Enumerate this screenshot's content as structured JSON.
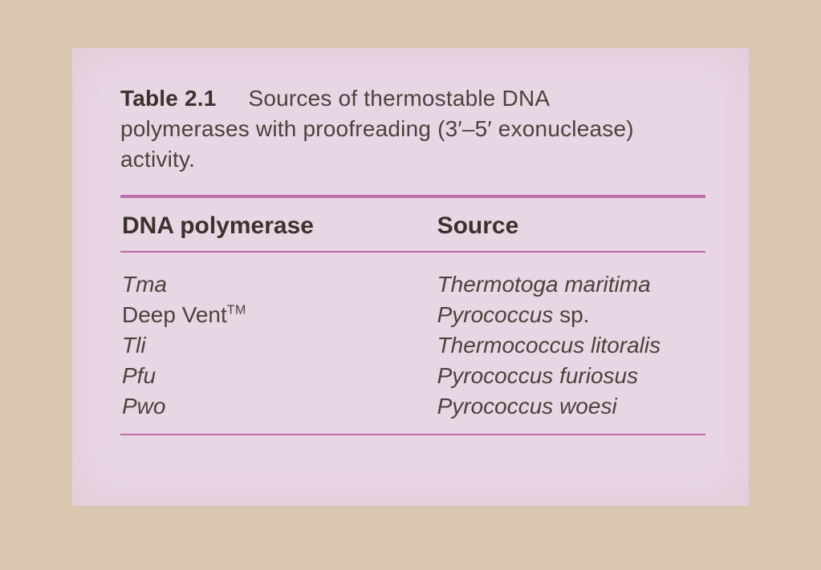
{
  "caption": {
    "label": "Table 2.1",
    "text_line1": "Sources of thermostable DNA",
    "text_line2": "polymerases with proofreading (3′–5′ exonuclease)",
    "text_line3": "activity."
  },
  "table": {
    "type": "table",
    "background_color": "#e9d6e4",
    "page_background_color": "#d9c7af",
    "rule_color": "#b96fa8",
    "text_color": "#4a423c",
    "header_text_color": "#3a322c",
    "header_font_weight": "700",
    "caption_fontsize_pt": 21,
    "header_fontsize_pt": 23,
    "body_fontsize_pt": 21,
    "columns": [
      {
        "key": "polymerase",
        "label": "DNA polymerase",
        "width_pct": 54,
        "align": "left"
      },
      {
        "key": "source",
        "label": "Source",
        "width_pct": 46,
        "align": "left"
      }
    ],
    "rows": [
      {
        "polymerase": {
          "text": "Tma",
          "italic": true,
          "tm": false
        },
        "source": {
          "main_italic": "Thermotoga maritima",
          "tail_roman": ""
        }
      },
      {
        "polymerase": {
          "text": "Deep Vent",
          "italic": false,
          "tm": true
        },
        "source": {
          "main_italic": "Pyrococcus",
          "tail_roman": " sp."
        }
      },
      {
        "polymerase": {
          "text": "Tli",
          "italic": true,
          "tm": false
        },
        "source": {
          "main_italic": "Thermococcus litoralis",
          "tail_roman": ""
        }
      },
      {
        "polymerase": {
          "text": "Pfu",
          "italic": true,
          "tm": false
        },
        "source": {
          "main_italic": "Pyrococcus furiosus",
          "tail_roman": ""
        }
      },
      {
        "polymerase": {
          "text": "Pwo",
          "italic": true,
          "tm": false
        },
        "source": {
          "main_italic": "Pyrococcus woesi",
          "tail_roman": ""
        }
      }
    ],
    "tm_label": "TM"
  }
}
